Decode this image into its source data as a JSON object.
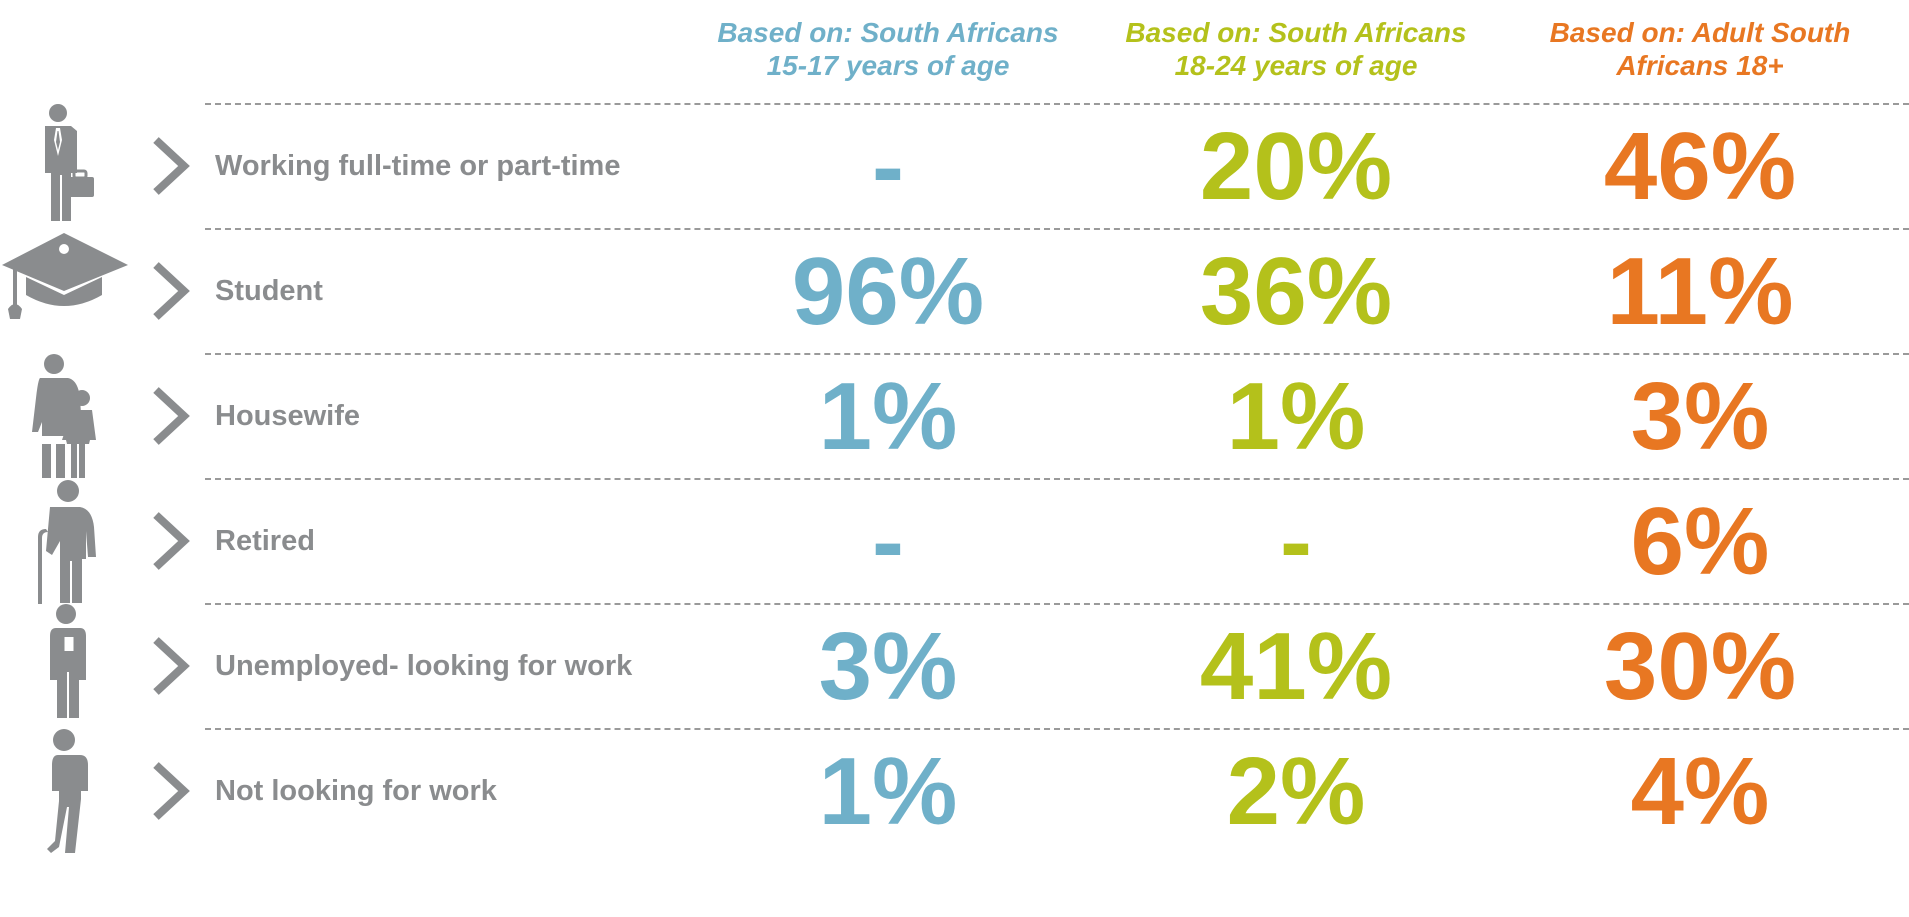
{
  "chart_data": {
    "type": "table",
    "title": "",
    "columns": [
      {
        "name": "Based on: South Africans 15-17 years of age",
        "color": "#6fb0c9"
      },
      {
        "name": "Based on: South Africans 18-24 years of age",
        "color": "#b4c11b"
      },
      {
        "name": "Based on: Adult South Africans 18+",
        "color": "#e87722"
      }
    ],
    "header_lines": [
      [
        "Based on: South Africans",
        "15-17 years of age"
      ],
      [
        "Based on: South Africans",
        "18-24 years of age"
      ],
      [
        "Based on: Adult South",
        "Africans 18+"
      ]
    ],
    "categories": [
      "Working full-time or part-time",
      "Student",
      "Housewife",
      "Retired",
      "Unemployed- looking for work",
      "Not looking for work"
    ],
    "icons": [
      "businessman-icon",
      "graduation-cap-icon",
      "mother-child-icon",
      "elderly-cane-icon",
      "man-phone-icon",
      "man-walking-icon"
    ],
    "series": [
      {
        "name": "South Africans 15-17 years of age",
        "values": [
          "-",
          "96%",
          "1%",
          "-",
          "3%",
          "1%"
        ]
      },
      {
        "name": "South Africans 18-24 years of age",
        "values": [
          "20%",
          "36%",
          "1%",
          "-",
          "41%",
          "2%"
        ]
      },
      {
        "name": "Adult South Africans 18+",
        "values": [
          "46%",
          "11%",
          "3%",
          "6%",
          "30%",
          "4%"
        ]
      }
    ]
  }
}
